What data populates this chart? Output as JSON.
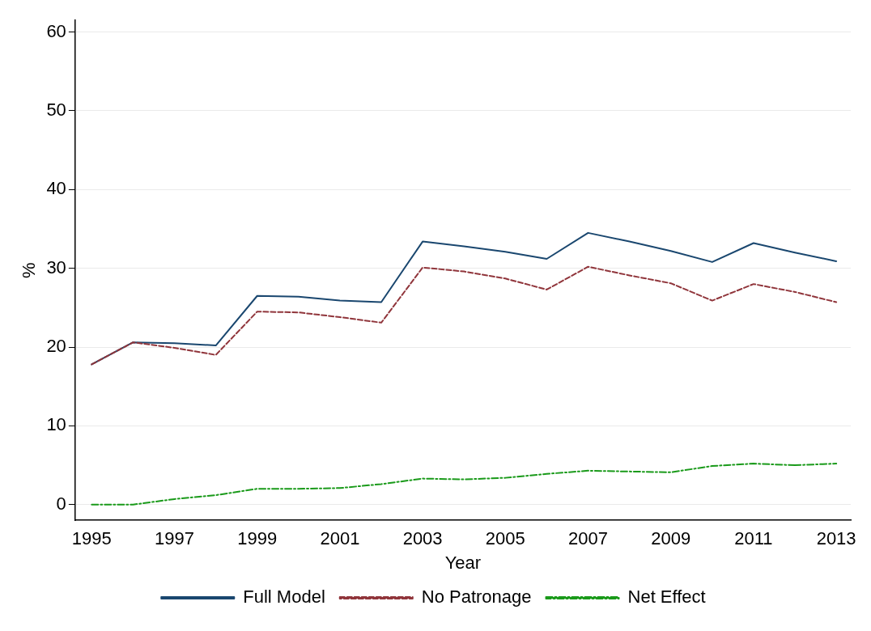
{
  "chart_data": {
    "type": "line",
    "xlabel": "Year",
    "ylabel": "%",
    "x": [
      1995,
      1996,
      1997,
      1998,
      1999,
      2000,
      2001,
      2002,
      2003,
      2004,
      2005,
      2006,
      2007,
      2008,
      2009,
      2010,
      2011,
      2012,
      2013
    ],
    "series": [
      {
        "name": "Full Model",
        "color": "#1a476f",
        "line_style": "solid",
        "values": [
          17.8,
          20.6,
          20.5,
          20.2,
          26.5,
          26.4,
          25.9,
          25.7,
          33.4,
          32.8,
          32.1,
          31.2,
          34.5,
          33.4,
          32.2,
          30.8,
          33.2,
          32.0,
          30.9
        ]
      },
      {
        "name": "No Patronage",
        "color": "#90353b",
        "line_style": "dashed",
        "values": [
          17.8,
          20.6,
          19.9,
          19.0,
          24.5,
          24.4,
          23.8,
          23.1,
          30.1,
          29.6,
          28.7,
          27.3,
          30.2,
          29.1,
          28.1,
          25.9,
          28.0,
          27.0,
          25.7
        ]
      },
      {
        "name": "Net Effect",
        "color": "#1a9a1a",
        "line_style": "dotted",
        "values": [
          0,
          0,
          0.7,
          1.2,
          2.0,
          2.0,
          2.1,
          2.6,
          3.3,
          3.2,
          3.4,
          3.9,
          4.3,
          4.2,
          4.1,
          4.9,
          5.2,
          5.0,
          5.2
        ]
      }
    ],
    "xlim": [
      1994.6,
      2013.35
    ],
    "xticks": [
      1995,
      1997,
      1999,
      2001,
      2003,
      2005,
      2007,
      2009,
      2011,
      2013
    ],
    "ylim": [
      -2,
      61.5
    ],
    "yticks": [
      0,
      10,
      20,
      30,
      40,
      50,
      60
    ],
    "grid": "y",
    "legend": "bottom",
    "marker": "none"
  }
}
